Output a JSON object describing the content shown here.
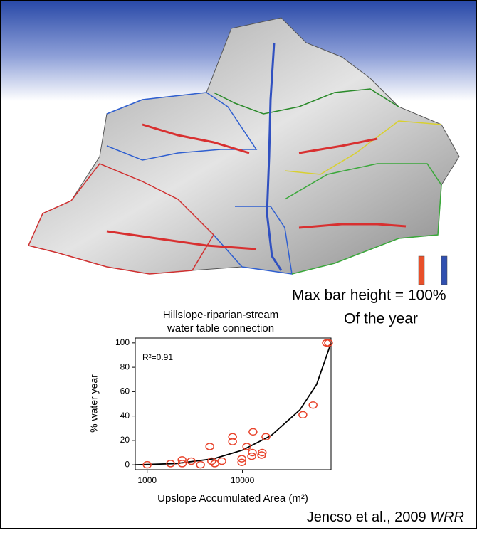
{
  "legend_note": [
    "Max bar height = 100%",
    "Of the year"
  ],
  "citation": {
    "text": "Jencso et al., 2009",
    "journal": "WRR"
  },
  "chart_data": {
    "type": "scatter",
    "title": [
      "Hillslope-riparian-stream",
      "water table connection"
    ],
    "x_label": "Upslope Accumulated Area (m²)",
    "y_label": "% water year",
    "annotation": "R²=0.91",
    "x": [
      1000,
      1760,
      2320,
      2330,
      2900,
      3630,
      4540,
      4750,
      5120,
      6070,
      7870,
      7870,
      9840,
      9840,
      11100,
      12700,
      12900,
      12500,
      15900,
      16100,
      17600,
      43000,
      55000,
      76000,
      80000
    ],
    "values": [
      0,
      1,
      4,
      1,
      3,
      0,
      15,
      3,
      1,
      3,
      23,
      19,
      5,
      2,
      15,
      10,
      27,
      7,
      8,
      10,
      23,
      41,
      49,
      100,
      100
    ],
    "color": "#e8422a",
    "curve": {
      "color": "#000000",
      "x": [
        750,
        2000,
        5000,
        10000,
        20000,
        40000,
        60000,
        85000
      ],
      "y": [
        0,
        1,
        5,
        12,
        24,
        45,
        66,
        100
      ]
    },
    "xscale": "log",
    "xlim": [
      750,
      85000
    ],
    "xticks": [
      1000,
      10000
    ],
    "ylim": [
      -4,
      104
    ],
    "yticks": [
      0,
      20,
      40,
      60,
      80,
      100
    ],
    "grid": false
  }
}
